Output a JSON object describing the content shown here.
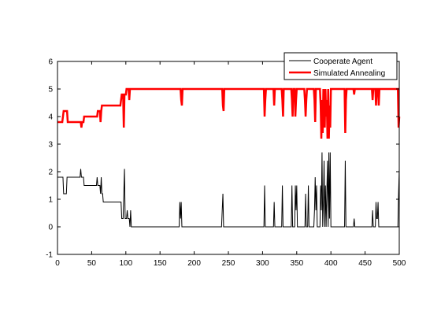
{
  "chart_data": {
    "type": "line",
    "title": "",
    "xlabel": "",
    "ylabel": "",
    "xlim": [
      0,
      500
    ],
    "ylim": [
      -1,
      6
    ],
    "xticks": [
      0,
      50,
      100,
      150,
      200,
      250,
      300,
      350,
      400,
      450,
      500
    ],
    "yticks": [
      -1,
      0,
      1,
      2,
      3,
      4,
      5,
      6
    ],
    "grid": false,
    "legend_position": "top-right",
    "series": [
      {
        "name": "Cooperate Agent",
        "color": "#000000",
        "points": [
          [
            0,
            1.8
          ],
          [
            8,
            1.8
          ],
          [
            9,
            1.2
          ],
          [
            13,
            1.2
          ],
          [
            14,
            1.8
          ],
          [
            33,
            1.8
          ],
          [
            34,
            2.1
          ],
          [
            35,
            1.8
          ],
          [
            38,
            1.8
          ],
          [
            39,
            1.5
          ],
          [
            57,
            1.5
          ],
          [
            58,
            1.8
          ],
          [
            59,
            1.5
          ],
          [
            62,
            1.5
          ],
          [
            63,
            1.2
          ],
          [
            64,
            1.8
          ],
          [
            65,
            1.2
          ],
          [
            66,
            1.2
          ],
          [
            67,
            0.9
          ],
          [
            93,
            0.9
          ],
          [
            94,
            0.3
          ],
          [
            96,
            0.3
          ],
          [
            97,
            1.2
          ],
          [
            98,
            2.1
          ],
          [
            99,
            0.3
          ],
          [
            101,
            0.3
          ],
          [
            102,
            0.6
          ],
          [
            103,
            0.3
          ],
          [
            105,
            0.3
          ],
          [
            106,
            0
          ],
          [
            107,
            0.6
          ],
          [
            108,
            0
          ],
          [
            178,
            0
          ],
          [
            179,
            0.9
          ],
          [
            180,
            0.3
          ],
          [
            181,
            0.9
          ],
          [
            182,
            0
          ],
          [
            240,
            0
          ],
          [
            241,
            0.6
          ],
          [
            242,
            1.2
          ],
          [
            243,
            0
          ],
          [
            302,
            0
          ],
          [
            303,
            1.5
          ],
          [
            304,
            0
          ],
          [
            316,
            0
          ],
          [
            317,
            0.9
          ],
          [
            318,
            0
          ],
          [
            328,
            0
          ],
          [
            329,
            1.5
          ],
          [
            330,
            0
          ],
          [
            342,
            0
          ],
          [
            343,
            1.5
          ],
          [
            344,
            0
          ],
          [
            347,
            0
          ],
          [
            348,
            1.5
          ],
          [
            349,
            0.6
          ],
          [
            350,
            1.5
          ],
          [
            351,
            0
          ],
          [
            362,
            0
          ],
          [
            363,
            1.2
          ],
          [
            364,
            0
          ],
          [
            366,
            0
          ],
          [
            367,
            1.5
          ],
          [
            368,
            0
          ],
          [
            375,
            0
          ],
          [
            376,
            0.6
          ],
          [
            377,
            1.8
          ],
          [
            378,
            0.6
          ],
          [
            379,
            1.5
          ],
          [
            380,
            0
          ],
          [
            384,
            0
          ],
          [
            385,
            1.5
          ],
          [
            386,
            0.6
          ],
          [
            387,
            2.7
          ],
          [
            388,
            0
          ],
          [
            389,
            0.9
          ],
          [
            390,
            2.4
          ],
          [
            391,
            0
          ],
          [
            392,
            1.5
          ],
          [
            393,
            0
          ],
          [
            394,
            1.2
          ],
          [
            395,
            2.4
          ],
          [
            396,
            0
          ],
          [
            397,
            2.7
          ],
          [
            398,
            0.3
          ],
          [
            399,
            2.7
          ],
          [
            400,
            0
          ],
          [
            420,
            0
          ],
          [
            421,
            2.4
          ],
          [
            422,
            0
          ],
          [
            433,
            0
          ],
          [
            434,
            0.3
          ],
          [
            435,
            0
          ],
          [
            460,
            0
          ],
          [
            461,
            0.6
          ],
          [
            462,
            0
          ],
          [
            465,
            0
          ],
          [
            466,
            0.9
          ],
          [
            467,
            0.3
          ],
          [
            468,
            0.3
          ],
          [
            469,
            0.9
          ],
          [
            470,
            0
          ],
          [
            498,
            0
          ],
          [
            499,
            1.2
          ],
          [
            500,
            2.1
          ]
        ]
      },
      {
        "name": "Simulated Annealing",
        "color": "#ff0000",
        "points": [
          [
            0,
            3.8
          ],
          [
            7,
            3.8
          ],
          [
            8,
            4.0
          ],
          [
            9,
            4.2
          ],
          [
            14,
            4.2
          ],
          [
            15,
            3.8
          ],
          [
            34,
            3.8
          ],
          [
            35,
            3.6
          ],
          [
            36,
            3.8
          ],
          [
            38,
            3.8
          ],
          [
            39,
            4.0
          ],
          [
            58,
            4.0
          ],
          [
            59,
            4.2
          ],
          [
            62,
            4.2
          ],
          [
            63,
            3.8
          ],
          [
            64,
            4.2
          ],
          [
            65,
            4.4
          ],
          [
            92,
            4.4
          ],
          [
            93,
            4.6
          ],
          [
            94,
            4.8
          ],
          [
            96,
            4.8
          ],
          [
            97,
            3.6
          ],
          [
            98,
            4.8
          ],
          [
            100,
            4.8
          ],
          [
            101,
            5.0
          ],
          [
            104,
            5.0
          ],
          [
            105,
            4.6
          ],
          [
            106,
            5.0
          ],
          [
            180,
            5.0
          ],
          [
            181,
            4.6
          ],
          [
            182,
            4.4
          ],
          [
            183,
            5.0
          ],
          [
            241,
            5.0
          ],
          [
            242,
            4.4
          ],
          [
            243,
            4.2
          ],
          [
            244,
            5.0
          ],
          [
            302,
            5.0
          ],
          [
            303,
            4.0
          ],
          [
            304,
            4.6
          ],
          [
            305,
            5.0
          ],
          [
            316,
            5.0
          ],
          [
            317,
            4.4
          ],
          [
            318,
            5.0
          ],
          [
            328,
            5.0
          ],
          [
            329,
            4.6
          ],
          [
            330,
            4.0
          ],
          [
            331,
            5.0
          ],
          [
            342,
            5.0
          ],
          [
            343,
            4.6
          ],
          [
            344,
            4.0
          ],
          [
            345,
            5.0
          ],
          [
            347,
            5.0
          ],
          [
            348,
            4.0
          ],
          [
            349,
            4.6
          ],
          [
            350,
            5.0
          ],
          [
            361,
            5.0
          ],
          [
            362,
            4.6
          ],
          [
            363,
            4.0
          ],
          [
            364,
            4.6
          ],
          [
            365,
            5.0
          ],
          [
            375,
            5.0
          ],
          [
            376,
            4.6
          ],
          [
            377,
            3.8
          ],
          [
            378,
            5.0
          ],
          [
            384,
            5.0
          ],
          [
            385,
            4.4
          ],
          [
            386,
            3.2
          ],
          [
            387,
            4.6
          ],
          [
            388,
            3.4
          ],
          [
            389,
            5.0
          ],
          [
            390,
            4.4
          ],
          [
            391,
            3.6
          ],
          [
            392,
            5.0
          ],
          [
            393,
            4.0
          ],
          [
            394,
            4.6
          ],
          [
            395,
            3.2
          ],
          [
            396,
            5.0
          ],
          [
            397,
            3.2
          ],
          [
            398,
            4.4
          ],
          [
            399,
            3.6
          ],
          [
            400,
            5.0
          ],
          [
            420,
            5.0
          ],
          [
            421,
            3.4
          ],
          [
            422,
            4.6
          ],
          [
            423,
            5.0
          ],
          [
            433,
            5.0
          ],
          [
            434,
            4.8
          ],
          [
            435,
            5.0
          ],
          [
            460,
            5.0
          ],
          [
            461,
            4.6
          ],
          [
            462,
            5.0
          ],
          [
            465,
            5.0
          ],
          [
            466,
            4.4
          ],
          [
            467,
            5.0
          ],
          [
            469,
            5.0
          ],
          [
            470,
            4.4
          ],
          [
            471,
            5.0
          ],
          [
            498,
            5.0
          ],
          [
            499,
            3.6
          ],
          [
            500,
            4.0
          ]
        ]
      }
    ]
  }
}
